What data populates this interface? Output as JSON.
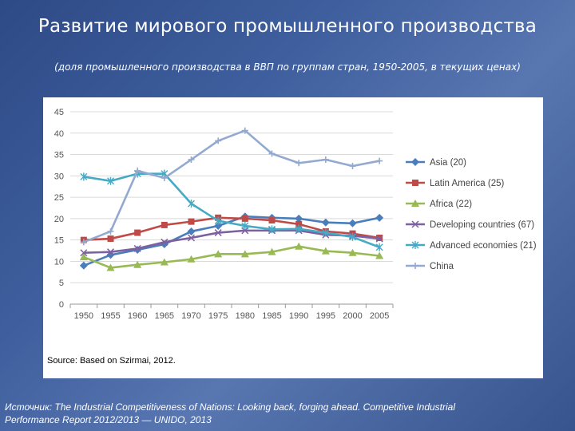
{
  "slide": {
    "title": "Развитие мирового промышленного производства",
    "subtitle": "(доля промышленного производства в ВВП по группам стран, 1950-2005, в текущих ценах)",
    "footer_line1": "Источник: The Industrial Competitiveness of Nations: Looking back, forging ahead. Competitive Industrial",
    "footer_line2": "Performance Report 2012/2013 — UNIDO, 2013"
  },
  "chart_data": {
    "type": "line",
    "title": "",
    "xlabel": "",
    "ylabel": "",
    "source": "Source: Based on Szirmai, 2012.",
    "categories": [
      "1950",
      "1955",
      "1960",
      "1965",
      "1970",
      "1975",
      "1980",
      "1985",
      "1990",
      "1995",
      "2000",
      "2005"
    ],
    "ylim": [
      0,
      45
    ],
    "yticks": [
      "0",
      "5",
      "10",
      "15",
      "20",
      "25",
      "30",
      "35",
      "40",
      "45"
    ],
    "grid": true,
    "legend_position": "right",
    "series": [
      {
        "name": "Asia (20)",
        "color": "#4a7ebb",
        "marker": "diamond",
        "values": [
          9,
          11.5,
          12.7,
          14,
          17,
          18.3,
          20.5,
          20.2,
          20,
          19.1,
          18.9,
          20.2
        ]
      },
      {
        "name": "Latin America (25)",
        "color": "#be4b48",
        "marker": "square",
        "values": [
          15,
          15.3,
          16.7,
          18.5,
          19.3,
          20.2,
          20,
          19.6,
          18.7,
          17,
          16.5,
          15.5
        ]
      },
      {
        "name": "Africa (22)",
        "color": "#98b954",
        "marker": "triangle",
        "values": [
          11,
          8.5,
          9.2,
          9.8,
          10.5,
          11.7,
          11.7,
          12.2,
          13.5,
          12.4,
          12,
          11.3
        ]
      },
      {
        "name": "Developing countries (67)",
        "color": "#7d60a0",
        "marker": "x",
        "values": [
          12,
          12.2,
          13,
          14.5,
          15.5,
          16.7,
          17.2,
          17.2,
          17.2,
          16.2,
          16,
          15.3
        ]
      },
      {
        "name": "Advanced economies (21)",
        "color": "#46aac5",
        "marker": "star",
        "values": [
          29.8,
          28.8,
          30.5,
          30.5,
          23.5,
          19.5,
          18.3,
          17.5,
          17.6,
          16.7,
          15.7,
          13.3
        ]
      },
      {
        "name": "China",
        "color": "#93a9cf",
        "marker": "plus",
        "values": [
          14.5,
          17,
          31.2,
          29.5,
          33.8,
          38.2,
          40.6,
          35.2,
          33,
          33.8,
          32.3,
          33.5
        ]
      }
    ]
  }
}
